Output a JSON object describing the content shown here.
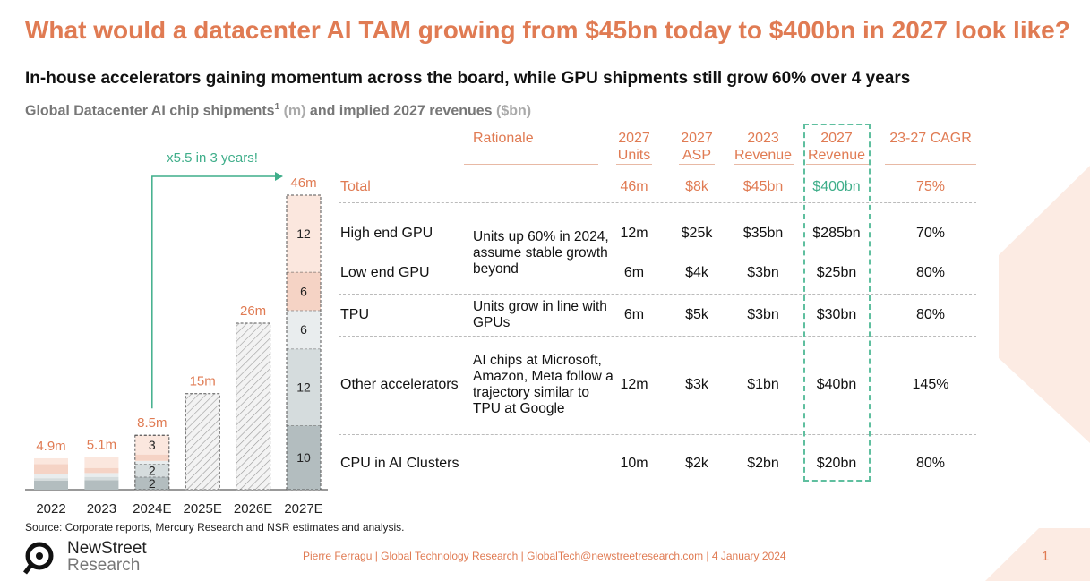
{
  "title": "What would a datacenter AI TAM growing from $45bn today to $400bn in 2027 look like?",
  "subtitle": "In-house accelerators gaining momentum across the board, while GPU shipments still grow 60% over 4 years",
  "chart_heading": {
    "main": "Global Datacenter AI chip shipments",
    "sup": "1",
    "unit1": " (m)",
    "mid": " and implied 2027 revenues ",
    "unit2": "($bn)"
  },
  "chart_data": {
    "type": "stacked_bar",
    "categories": [
      "2022",
      "2023",
      "2024E",
      "2025E",
      "2026E",
      "2027E"
    ],
    "values": [
      4.9,
      5.1,
      8.5,
      15,
      26,
      46
    ],
    "value_labels": [
      "4.9m",
      "5.1m",
      "8.5m",
      "15m",
      "26m",
      "46m"
    ],
    "series": [
      {
        "color": "#b3bdbf",
        "values": [
          1.4,
          1.5,
          2,
          null,
          null,
          10
        ]
      },
      {
        "color": "#d5dcdd",
        "values": [
          0.4,
          0.5,
          2,
          null,
          null,
          12
        ]
      },
      {
        "color": "#e9edee",
        "values": [
          0.6,
          0.6,
          0.5,
          null,
          null,
          6
        ]
      },
      {
        "color": "#f5d3c5",
        "values": [
          1.6,
          0.8,
          1,
          null,
          null,
          6
        ]
      },
      {
        "color": "#fbe7de",
        "values": [
          0.9,
          1.7,
          3,
          null,
          null,
          12
        ]
      }
    ],
    "annotation": "x5.5 in 3 years!"
  },
  "table": {
    "header": [
      "Rationale",
      "2027 Units",
      "2027 ASP",
      "2023 Revenue",
      "2027 Revenue",
      "23-27 CAGR"
    ],
    "rows": [
      {
        "label": "Total",
        "values": [
          "46m",
          "$8k",
          "$45bn",
          "$400bn",
          "75%"
        ]
      },
      {
        "label": "High end GPU",
        "rationale": "Units up 60% in 2024, assume stable growth beyond",
        "values": [
          "12m",
          "$25k",
          "$35bn",
          "$285bn",
          "70%"
        ]
      },
      {
        "label": "Low end GPU",
        "values": [
          "6m",
          "$4k",
          "$3bn",
          "$25bn",
          "80%"
        ]
      },
      {
        "label": "TPU",
        "rationale": "Units grow in line with GPUs",
        "values": [
          "6m",
          "$5k",
          "$3bn",
          "$30bn",
          "80%"
        ]
      },
      {
        "label": "Other accelerators",
        "rationale": "AI chips at Microsoft, Amazon, Meta follow a trajectory similar to TPU at Google",
        "values": [
          "12m",
          "$3k",
          "$1bn",
          "$40bn",
          "145%"
        ]
      },
      {
        "label": "CPU in AI Clusters",
        "values": [
          "10m",
          "$2k",
          "$2bn",
          "$20bn",
          "80%"
        ]
      }
    ]
  },
  "source": "Source: Corporate reports, Mercury Research and NSR estimates and analysis.",
  "logo": {
    "line1": "NewStreet",
    "line2": "Research"
  },
  "footer": "Pierre Ferragu | Global Technology Research | GlobalTech@newstreetresearch.com | 4 January 2024",
  "page_number": "1"
}
